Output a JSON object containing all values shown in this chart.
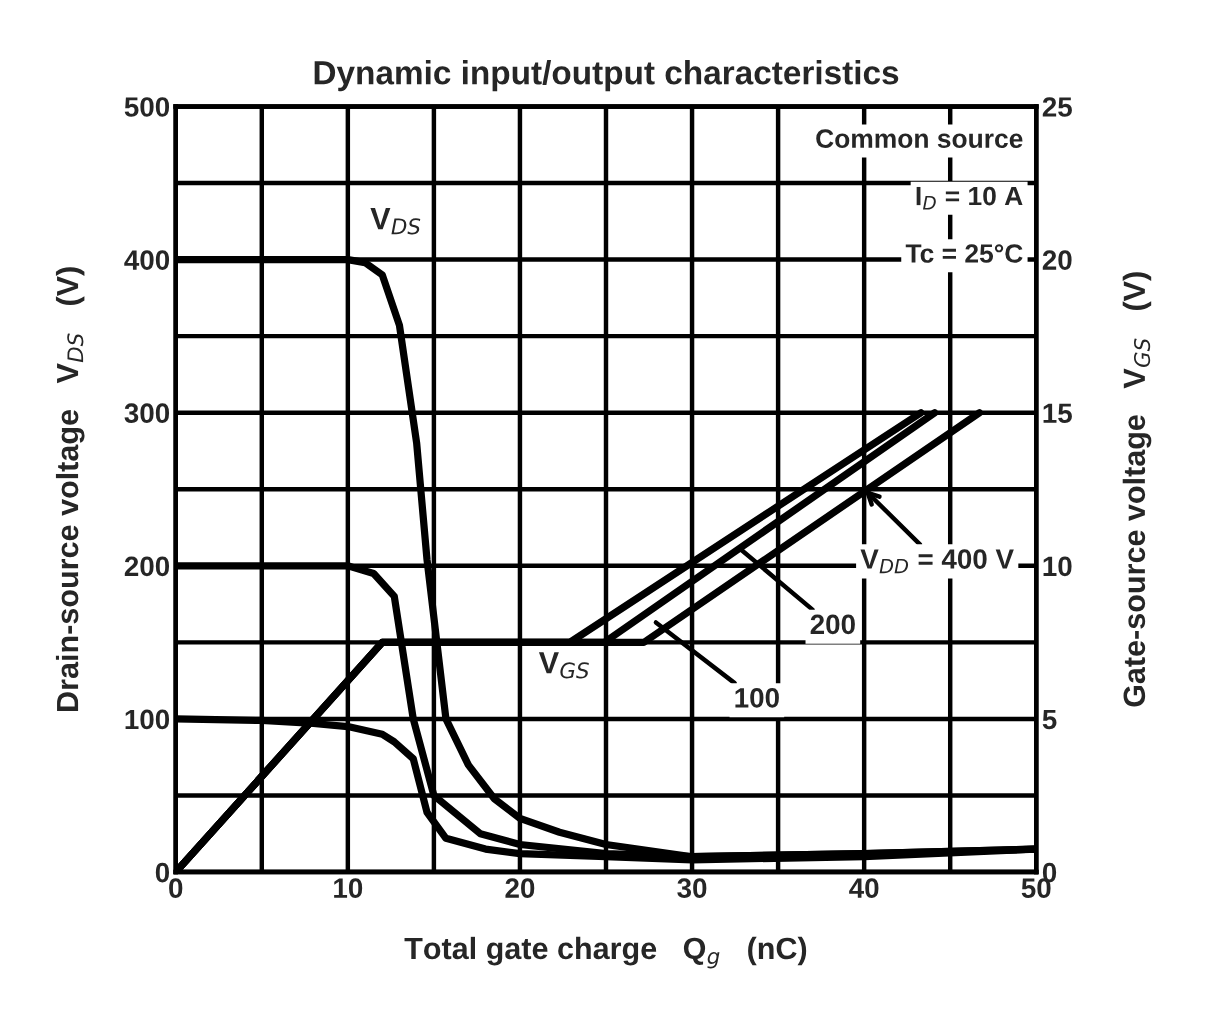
{
  "chart_data": {
    "type": "line",
    "title": "Dynamic input/output characteristics",
    "xlabel": "Total gate charge   Q$_{g}$   (nC)",
    "ylabel": "Drain-source voltage   V$_{DS}$   (V)",
    "y2label": "Gate-source voltage   V$_{GS}$   (V)",
    "xlim": [
      0,
      50
    ],
    "ylim": [
      0,
      500
    ],
    "y2lim": [
      0,
      25
    ],
    "xticks": [
      0,
      {
        "value": 5,
        "label": null
      },
      10,
      {
        "value": 15,
        "label": null
      },
      20,
      {
        "value": 25,
        "label": null
      },
      30,
      {
        "value": 35,
        "label": null
      },
      40,
      {
        "value": 45,
        "label": null
      },
      50
    ],
    "yticks": [
      0,
      {
        "value": 50,
        "label": null
      },
      100,
      {
        "value": 150,
        "label": null
      },
      200,
      {
        "value": 250,
        "label": null
      },
      300,
      {
        "value": 350,
        "label": null
      },
      400,
      {
        "value": 450,
        "label": null
      },
      500
    ],
    "y2ticks": [
      0,
      5,
      10,
      15,
      20,
      25
    ],
    "grid": true,
    "marker": "none",
    "line_style": "solid",
    "series": [
      {
        "color": "#000000",
        "x": [
          0,
          5,
          10,
          11,
          12,
          13,
          14,
          14.6,
          15.7,
          17,
          18.5,
          20,
          22.3,
          25,
          30,
          40,
          50
        ],
        "values": [
          400,
          400,
          400,
          398,
          390,
          357,
          280,
          204,
          100,
          70,
          48,
          35,
          26,
          18,
          10,
          12,
          15
        ]
      },
      {
        "color": "#000000",
        "x": [
          0,
          5,
          10,
          10.3,
          11.5,
          12.7,
          13.8,
          15,
          17.7,
          20,
          25,
          30,
          40,
          50
        ],
        "values": [
          200,
          200,
          200,
          199,
          195,
          180,
          100,
          50,
          25,
          18,
          12,
          10,
          12,
          15
        ]
      },
      {
        "color": "#000000",
        "x": [
          0,
          5,
          8,
          10,
          12,
          12.7,
          13.8,
          14.6,
          15.7,
          18,
          20,
          25,
          30,
          40,
          50
        ],
        "values": [
          100,
          99,
          97,
          95,
          90,
          85,
          74,
          39,
          22,
          15,
          12,
          10,
          8,
          10,
          15
        ]
      },
      {
        "color": "#000000",
        "axis": "y2",
        "x": [
          0,
          12,
          27.2,
          46.7
        ],
        "values": [
          0,
          7.5,
          7.5,
          15
        ]
      },
      {
        "color": "#000000",
        "axis": "y2",
        "x": [
          0,
          12,
          24.9,
          44.1
        ],
        "values": [
          0,
          7.5,
          7.5,
          15
        ]
      },
      {
        "color": "#000000",
        "axis": "y2",
        "x": [
          0,
          12,
          22.9,
          43.3
        ],
        "values": [
          0,
          7.5,
          7.5,
          15
        ]
      }
    ],
    "annotations": [
      {
        "text": "V$_{DS}$",
        "x": 12.8,
        "y": 425
      },
      {
        "text": "V$_{GS}$",
        "x": 22.6,
        "y": 135
      },
      {
        "text": "V$_{DD}$ = 400 V",
        "x": 40,
        "y": 250
      },
      {
        "text": "200",
        "x": 32.8,
        "y": 211
      },
      {
        "text": "100",
        "x": 27.9,
        "y": 163
      },
      "Common source",
      "I$_{D}$ = 10 A",
      "Tc = 25°C"
    ]
  }
}
